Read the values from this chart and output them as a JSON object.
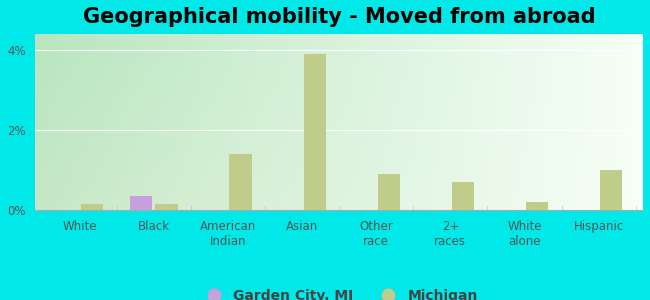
{
  "title": "Geographical mobility - Moved from abroad",
  "categories": [
    "White",
    "Black",
    "American\nIndian",
    "Asian",
    "Other\nrace",
    "2+\nraces",
    "White\nalone",
    "Hispanic"
  ],
  "garden_city_values": [
    0.0,
    0.35,
    0.0,
    0.0,
    0.0,
    0.0,
    0.0,
    0.0
  ],
  "michigan_values": [
    0.15,
    0.15,
    1.4,
    3.9,
    0.9,
    0.7,
    0.2,
    1.0
  ],
  "ylim": [
    0,
    4.4
  ],
  "yticks": [
    0,
    2,
    4
  ],
  "ytick_labels": [
    "0%",
    "2%",
    "4%"
  ],
  "bar_width": 0.3,
  "garden_city_color": "#c9a0dc",
  "michigan_color": "#bfcc8a",
  "background_color": "#00e8e8",
  "plot_bg_left": "#c8e8c8",
  "plot_bg_right": "#f0f8f0",
  "legend_garden_city": "Garden City, MI",
  "legend_michigan": "Michigan",
  "title_fontsize": 15,
  "axis_fontsize": 8.5,
  "legend_fontsize": 10,
  "separator_color": "#aaccaa",
  "grid_color": "#ccddcc"
}
